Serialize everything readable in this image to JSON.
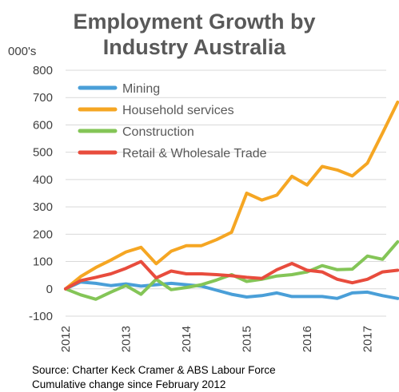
{
  "chart_data": {
    "type": "line",
    "title_lines": [
      "Employment Growth by",
      "Industry Australia"
    ],
    "unit_label": "000's",
    "ylim": [
      -100,
      800
    ],
    "yticks": [
      -100,
      0,
      100,
      200,
      300,
      400,
      500,
      600,
      700,
      800
    ],
    "xlim": [
      2012.0,
      2017.75
    ],
    "xticks": [
      "2012",
      "2013",
      "2014",
      "2015",
      "2016",
      "2017"
    ],
    "grid": true,
    "legend_position": "top-left",
    "x": [
      2012.0,
      2012.25,
      2012.5,
      2012.75,
      2013.0,
      2013.25,
      2013.5,
      2013.75,
      2014.0,
      2014.25,
      2014.5,
      2014.75,
      2015.0,
      2015.25,
      2015.5,
      2015.75,
      2016.0,
      2016.25,
      2016.5,
      2016.75,
      2017.0,
      2017.25,
      2017.5
    ],
    "series": [
      {
        "name": "Mining",
        "color": "#4a9fd8",
        "values": [
          0,
          25,
          20,
          12,
          18,
          10,
          15,
          20,
          15,
          10,
          -5,
          -20,
          -30,
          -25,
          -15,
          -28,
          -28,
          -28,
          -35,
          -15,
          -12,
          -25,
          -35
        ]
      },
      {
        "name": "Household services",
        "color": "#f5a623",
        "values": [
          0,
          45,
          78,
          105,
          135,
          152,
          92,
          138,
          158,
          158,
          180,
          207,
          350,
          325,
          343,
          412,
          380,
          448,
          435,
          413,
          460,
          570,
          683
        ]
      },
      {
        "name": "Construction",
        "color": "#84c557",
        "values": [
          0,
          -22,
          -38,
          -12,
          12,
          -20,
          35,
          -3,
          5,
          15,
          32,
          52,
          27,
          35,
          47,
          52,
          62,
          85,
          70,
          72,
          120,
          108,
          172
        ]
      },
      {
        "name": "Retail & Wholesale Trade",
        "color": "#e84c3d",
        "values": [
          0,
          30,
          42,
          55,
          75,
          100,
          40,
          65,
          55,
          55,
          52,
          48,
          42,
          38,
          70,
          93,
          68,
          62,
          35,
          22,
          35,
          62,
          68
        ]
      }
    ]
  },
  "source": {
    "line1": "Source: Charter Keck Cramer & ABS Labour Force",
    "line2": "Cumulative change since February 2012"
  }
}
